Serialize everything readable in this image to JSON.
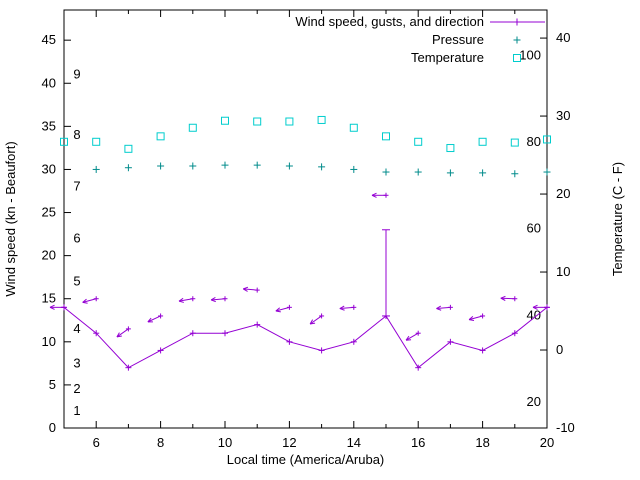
{
  "chart_data": {
    "type": "line",
    "title": "",
    "xlabel": "Local time (America/Aruba)",
    "ylabel_left": "Wind speed (kn - Beaufort)",
    "ylabel_right": "Temperature (C - F)",
    "grid": false,
    "legend_position": "top-right",
    "x_range": [
      5,
      20
    ],
    "y_left_range": [
      0,
      48.5
    ],
    "y_right_range": [
      -10,
      43.6
    ],
    "x_major_ticks": [
      6,
      8,
      10,
      12,
      14,
      16,
      18,
      20
    ],
    "x_minor_ticks": [
      5,
      7,
      9,
      11,
      13,
      15,
      17,
      19
    ],
    "y_left_ticks": [
      0,
      5,
      10,
      15,
      20,
      25,
      30,
      35,
      40,
      45
    ],
    "y_right_ticks": [
      -10,
      0,
      10,
      20,
      30,
      40
    ],
    "beaufort_scale_labels": [
      {
        "beaufort": 1,
        "kn": 2
      },
      {
        "beaufort": 2,
        "kn": 4.5
      },
      {
        "beaufort": 3,
        "kn": 7.5
      },
      {
        "beaufort": 4,
        "kn": 11.5
      },
      {
        "beaufort": 5,
        "kn": 17
      },
      {
        "beaufort": 6,
        "kn": 22
      },
      {
        "beaufort": 7,
        "kn": 28
      },
      {
        "beaufort": 8,
        "kn": 34
      },
      {
        "beaufort": 9,
        "kn": 41
      }
    ],
    "fahrenheit_scale_labels": [
      20,
      40,
      60,
      80,
      100
    ],
    "colors": {
      "wind": "#9400d3",
      "pressure": "#008b8b",
      "temperature": "#00cdcd",
      "axis": "#000000"
    },
    "legend": [
      {
        "label": "Wind speed, gusts, and direction",
        "marker": "plus-line",
        "series": "wind"
      },
      {
        "label": "Pressure",
        "marker": "plus",
        "series": "pressure"
      },
      {
        "label": "Temperature",
        "marker": "square",
        "series": "temperature"
      }
    ],
    "series": {
      "wind_speed": {
        "x": [
          5,
          6,
          7,
          8,
          9,
          10,
          11,
          12,
          13,
          14,
          15,
          16,
          17,
          18,
          19,
          20
        ],
        "values": [
          14,
          11,
          7,
          9,
          11,
          11,
          12,
          10,
          9,
          10,
          13,
          7,
          10,
          9,
          11,
          14
        ]
      },
      "wind_gusts": {
        "x": [
          5,
          6,
          7,
          8,
          9,
          10,
          11,
          12,
          13,
          14,
          15,
          16,
          17,
          18,
          19,
          20
        ],
        "values": [
          14,
          15,
          11.5,
          13,
          15,
          15,
          16,
          14,
          13,
          14,
          27,
          11,
          14,
          13,
          15,
          14
        ],
        "direction_deg": [
          180,
          195,
          215,
          205,
          190,
          185,
          175,
          195,
          215,
          185,
          180,
          210,
          185,
          195,
          178,
          180
        ]
      },
      "gust_error_bar": {
        "x": 15,
        "low": 13,
        "high": 23
      },
      "pressure": {
        "x": [
          6,
          7,
          8,
          9,
          10,
          11,
          12,
          13,
          14,
          15,
          16,
          17,
          18,
          19,
          20
        ],
        "values": [
          30.0,
          30.2,
          30.4,
          30.4,
          30.5,
          30.5,
          30.4,
          30.3,
          30.0,
          29.7,
          29.7,
          29.6,
          29.6,
          29.5,
          29.7
        ]
      },
      "temperature": {
        "x": [
          5,
          6,
          7,
          8,
          9,
          10,
          11,
          12,
          13,
          14,
          15,
          16,
          17,
          18,
          19,
          20
        ],
        "values_c": [
          26.7,
          26.7,
          25.8,
          27.4,
          28.5,
          29.4,
          29.3,
          29.3,
          29.5,
          28.5,
          27.4,
          26.7,
          25.9,
          26.7,
          26.6,
          27.0
        ]
      }
    }
  }
}
